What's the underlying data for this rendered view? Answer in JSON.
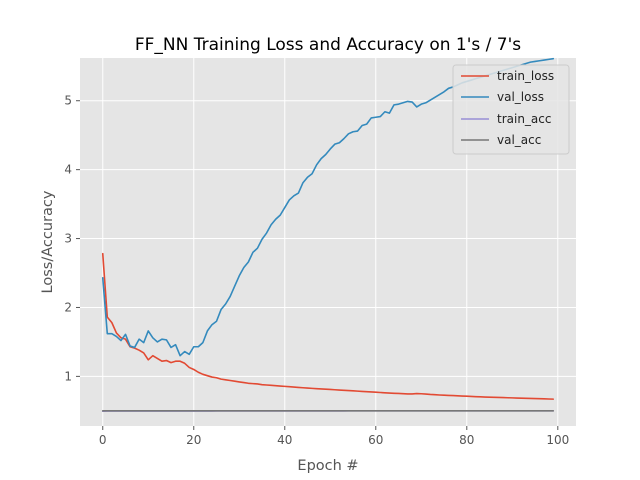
{
  "chart_data": {
    "type": "line",
    "title": "FF_NN Training Loss and Accuracy on 1's / 7's",
    "xlabel": "Epoch #",
    "ylabel": "Loss/Accuracy",
    "xlim": [
      -5,
      104
    ],
    "ylim": [
      0.28,
      5.62
    ],
    "xticks": [
      0,
      20,
      40,
      60,
      80,
      100
    ],
    "yticks": [
      1,
      2,
      3,
      4,
      5
    ],
    "grid": true,
    "legend_position": "top-right",
    "x": [
      0,
      1,
      2,
      3,
      4,
      5,
      6,
      7,
      8,
      9,
      10,
      11,
      12,
      13,
      14,
      15,
      16,
      17,
      18,
      19,
      20,
      21,
      22,
      23,
      24,
      25,
      26,
      27,
      28,
      29,
      30,
      31,
      32,
      33,
      34,
      35,
      36,
      37,
      38,
      39,
      40,
      41,
      42,
      43,
      44,
      45,
      46,
      47,
      48,
      49,
      50,
      51,
      52,
      53,
      54,
      55,
      56,
      57,
      58,
      59,
      60,
      61,
      62,
      63,
      64,
      65,
      66,
      67,
      68,
      69,
      70,
      71,
      72,
      73,
      74,
      75,
      76,
      77,
      78,
      79,
      80,
      81,
      82,
      83,
      84,
      85,
      86,
      87,
      88,
      89,
      90,
      91,
      92,
      93,
      94,
      95,
      96,
      97,
      98,
      99
    ],
    "series": [
      {
        "name": "train_loss",
        "color": "#e24a33",
        "values": [
          2.78,
          1.86,
          1.78,
          1.63,
          1.56,
          1.54,
          1.43,
          1.41,
          1.38,
          1.34,
          1.24,
          1.3,
          1.26,
          1.22,
          1.23,
          1.2,
          1.22,
          1.22,
          1.19,
          1.13,
          1.1,
          1.06,
          1.03,
          1.01,
          0.99,
          0.98,
          0.96,
          0.95,
          0.94,
          0.93,
          0.92,
          0.91,
          0.9,
          0.895,
          0.89,
          0.88,
          0.875,
          0.87,
          0.865,
          0.86,
          0.855,
          0.85,
          0.845,
          0.84,
          0.835,
          0.83,
          0.826,
          0.822,
          0.818,
          0.814,
          0.81,
          0.806,
          0.802,
          0.798,
          0.794,
          0.79,
          0.786,
          0.782,
          0.778,
          0.774,
          0.77,
          0.766,
          0.762,
          0.758,
          0.755,
          0.752,
          0.749,
          0.746,
          0.745,
          0.75,
          0.748,
          0.744,
          0.738,
          0.734,
          0.73,
          0.727,
          0.724,
          0.721,
          0.718,
          0.715,
          0.712,
          0.709,
          0.706,
          0.703,
          0.7,
          0.698,
          0.696,
          0.694,
          0.692,
          0.69,
          0.688,
          0.686,
          0.684,
          0.682,
          0.68,
          0.678,
          0.676,
          0.674,
          0.672,
          0.67
        ]
      },
      {
        "name": "val_loss",
        "color": "#348abd",
        "values": [
          2.43,
          1.62,
          1.62,
          1.58,
          1.52,
          1.61,
          1.44,
          1.42,
          1.54,
          1.49,
          1.66,
          1.56,
          1.5,
          1.54,
          1.53,
          1.42,
          1.46,
          1.3,
          1.36,
          1.32,
          1.43,
          1.43,
          1.49,
          1.66,
          1.75,
          1.8,
          1.97,
          2.05,
          2.16,
          2.31,
          2.46,
          2.58,
          2.66,
          2.8,
          2.86,
          2.99,
          3.08,
          3.2,
          3.28,
          3.34,
          3.45,
          3.56,
          3.62,
          3.66,
          3.81,
          3.89,
          3.94,
          4.07,
          4.16,
          4.22,
          4.3,
          4.37,
          4.39,
          4.45,
          4.52,
          4.55,
          4.56,
          4.64,
          4.66,
          4.75,
          4.76,
          4.77,
          4.84,
          4.82,
          4.94,
          4.95,
          4.97,
          4.99,
          4.98,
          4.91,
          4.95,
          4.97,
          5.01,
          5.05,
          5.09,
          5.13,
          5.18,
          5.2,
          5.23,
          5.26,
          5.28,
          5.3,
          5.32,
          5.34,
          5.36,
          5.38,
          5.4,
          5.42,
          5.44,
          5.46,
          5.48,
          5.5,
          5.52,
          5.54,
          5.56,
          5.57,
          5.58,
          5.59,
          5.6,
          5.61
        ]
      },
      {
        "name": "train_acc",
        "color": "#988ed5",
        "values": [
          0.495,
          0.496,
          0.496,
          0.496,
          0.496,
          0.496,
          0.497,
          0.497,
          0.497,
          0.497,
          0.497,
          0.497,
          0.497,
          0.497,
          0.497,
          0.497,
          0.497,
          0.497,
          0.497,
          0.497,
          0.497,
          0.497,
          0.497,
          0.497,
          0.497,
          0.498,
          0.498,
          0.498,
          0.498,
          0.498,
          0.498,
          0.498,
          0.498,
          0.498,
          0.498,
          0.498,
          0.499,
          0.499,
          0.499,
          0.499,
          0.499,
          0.499,
          0.499,
          0.499,
          0.499,
          0.499,
          0.499,
          0.499,
          0.499,
          0.499,
          0.499,
          0.499,
          0.499,
          0.499,
          0.5,
          0.5,
          0.5,
          0.5,
          0.5,
          0.5,
          0.5,
          0.5,
          0.5,
          0.5,
          0.5,
          0.5,
          0.5,
          0.5,
          0.5,
          0.5,
          0.5,
          0.5,
          0.5,
          0.5,
          0.5,
          0.5,
          0.5,
          0.5,
          0.5,
          0.5,
          0.5,
          0.5,
          0.5,
          0.5,
          0.5,
          0.5,
          0.5,
          0.5,
          0.5,
          0.5,
          0.5,
          0.5,
          0.5,
          0.5,
          0.5,
          0.5,
          0.5,
          0.5,
          0.5,
          0.5
        ]
      },
      {
        "name": "val_acc",
        "color": "#777777",
        "values": [
          0.5,
          0.5,
          0.5,
          0.5,
          0.5,
          0.5,
          0.5,
          0.5,
          0.5,
          0.5,
          0.5,
          0.5,
          0.5,
          0.5,
          0.5,
          0.5,
          0.5,
          0.5,
          0.5,
          0.5,
          0.5,
          0.5,
          0.5,
          0.5,
          0.5,
          0.5,
          0.5,
          0.5,
          0.5,
          0.5,
          0.5,
          0.5,
          0.5,
          0.5,
          0.5,
          0.5,
          0.5,
          0.5,
          0.5,
          0.5,
          0.5,
          0.5,
          0.5,
          0.5,
          0.5,
          0.5,
          0.5,
          0.5,
          0.5,
          0.5,
          0.5,
          0.5,
          0.5,
          0.5,
          0.5,
          0.5,
          0.5,
          0.5,
          0.5,
          0.5,
          0.5,
          0.5,
          0.5,
          0.5,
          0.5,
          0.5,
          0.5,
          0.5,
          0.5,
          0.5,
          0.5,
          0.5,
          0.5,
          0.5,
          0.5,
          0.5,
          0.5,
          0.5,
          0.5,
          0.5,
          0.5,
          0.5,
          0.5,
          0.5,
          0.5,
          0.5,
          0.5,
          0.5,
          0.5,
          0.5,
          0.5,
          0.5,
          0.5,
          0.5,
          0.5,
          0.5,
          0.5,
          0.5,
          0.5,
          0.5
        ]
      }
    ]
  }
}
